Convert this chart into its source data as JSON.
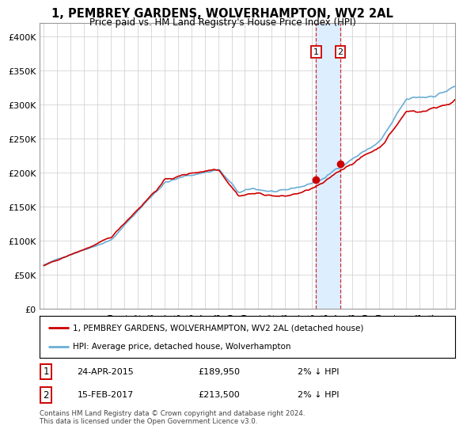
{
  "title": "1, PEMBREY GARDENS, WOLVERHAMPTON, WV2 2AL",
  "subtitle": "Price paid vs. HM Land Registry's House Price Index (HPI)",
  "hpi_label": "HPI: Average price, detached house, Wolverhampton",
  "price_label": "1, PEMBREY GARDENS, WOLVERHAMPTON, WV2 2AL (detached house)",
  "footer": "Contains HM Land Registry data © Crown copyright and database right 2024.\nThis data is licensed under the Open Government Licence v3.0.",
  "sale1_date": "24-APR-2015",
  "sale1_price": "£189,950",
  "sale1_hpi": "2% ↓ HPI",
  "sale2_date": "15-FEB-2017",
  "sale2_price": "£213,500",
  "sale2_hpi": "2% ↓ HPI",
  "hpi_color": "#6baed6",
  "price_color": "#cc0000",
  "highlight_color": "#ddeeff",
  "sale_marker_color": "#cc0000",
  "background_color": "#ffffff",
  "grid_color": "#cccccc",
  "sale1_x": 2015.3,
  "sale1_y": 189950,
  "sale2_x": 2017.12,
  "sale2_y": 213500,
  "ylim": [
    0,
    420000
  ],
  "yticks": [
    0,
    50000,
    100000,
    150000,
    200000,
    250000,
    300000,
    350000,
    400000
  ],
  "ytick_labels": [
    "£0",
    "£50K",
    "£100K",
    "£150K",
    "£200K",
    "£250K",
    "£300K",
    "£350K",
    "£400K"
  ],
  "xticks": [
    1995,
    1996,
    1997,
    1998,
    1999,
    2000,
    2001,
    2002,
    2003,
    2004,
    2005,
    2006,
    2007,
    2008,
    2009,
    2010,
    2011,
    2012,
    2013,
    2014,
    2015,
    2016,
    2017,
    2018,
    2019,
    2020,
    2021,
    2022,
    2023,
    2024,
    2025
  ],
  "highlight_x1": 2015.3,
  "highlight_x2": 2017.12
}
